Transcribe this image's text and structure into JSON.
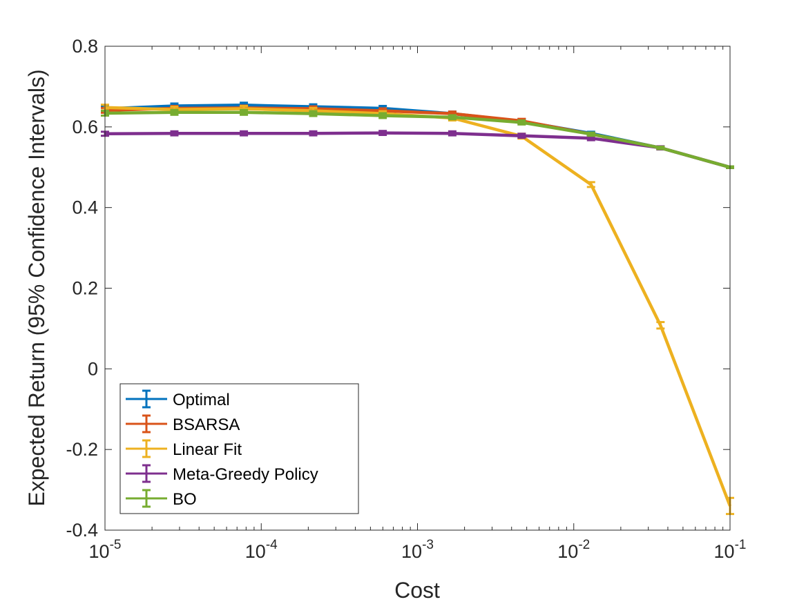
{
  "chart_data": {
    "type": "line",
    "title": "",
    "xlabel": "Cost",
    "ylabel": "Expected Return (95% Confidence Intervals)",
    "xscale": "log",
    "xlim": [
      1e-05,
      0.1
    ],
    "ylim": [
      -0.4,
      0.8
    ],
    "grid": false,
    "legend_position": "bottom-left",
    "x_ticks": [
      {
        "base": "10",
        "exp": "-5",
        "value": 1e-05
      },
      {
        "base": "10",
        "exp": "-4",
        "value": 0.0001
      },
      {
        "base": "10",
        "exp": "-3",
        "value": 0.001
      },
      {
        "base": "10",
        "exp": "-2",
        "value": 0.01
      },
      {
        "base": "10",
        "exp": "-1",
        "value": 0.1
      }
    ],
    "y_ticks": [
      {
        "label": "0.8",
        "value": 0.8
      },
      {
        "label": "0.6",
        "value": 0.6
      },
      {
        "label": "0.4",
        "value": 0.4
      },
      {
        "label": "0.2",
        "value": 0.2
      },
      {
        "label": "0",
        "value": 0
      },
      {
        "label": "-0.2",
        "value": -0.2
      },
      {
        "label": "-0.4",
        "value": -0.4
      }
    ],
    "x": [
      1e-05,
      2.78e-05,
      7.74e-05,
      0.000215,
      0.000599,
      0.00167,
      0.00464,
      0.0129,
      0.0359,
      0.1
    ],
    "series": [
      {
        "name": "Optimal",
        "color": "#0072BD",
        "values": [
          0.645,
          0.652,
          0.654,
          0.65,
          0.646,
          0.633,
          0.614,
          0.584,
          0.548,
          0.5
        ],
        "errors": [
          0.006,
          0.006,
          0.006,
          0.006,
          0.006,
          0.005,
          0.005,
          0.004,
          0.003,
          0.002
        ]
      },
      {
        "name": "BSARSA",
        "color": "#D95319",
        "values": [
          0.641,
          0.646,
          0.647,
          0.645,
          0.64,
          0.633,
          0.615,
          0.582,
          0.548,
          0.5
        ],
        "errors": [
          0.006,
          0.006,
          0.006,
          0.006,
          0.006,
          0.005,
          0.005,
          0.004,
          0.003,
          0.002
        ]
      },
      {
        "name": "Linear Fit",
        "color": "#EDB120",
        "values": [
          0.648,
          0.643,
          0.645,
          0.64,
          0.633,
          0.622,
          0.577,
          0.457,
          0.108,
          -0.34
        ],
        "errors": [
          0.007,
          0.007,
          0.007,
          0.007,
          0.006,
          0.006,
          0.006,
          0.006,
          0.008,
          0.02
        ]
      },
      {
        "name": "Meta-Greedy Policy",
        "color": "#7E2F8E",
        "values": [
          0.583,
          0.584,
          0.584,
          0.584,
          0.585,
          0.584,
          0.578,
          0.572,
          0.548,
          0.5
        ],
        "errors": [
          0.005,
          0.005,
          0.005,
          0.005,
          0.005,
          0.005,
          0.005,
          0.005,
          0.004,
          0.002
        ]
      },
      {
        "name": "BO",
        "color": "#77AC30",
        "values": [
          0.634,
          0.636,
          0.636,
          0.633,
          0.628,
          0.624,
          0.611,
          0.582,
          0.548,
          0.5
        ],
        "errors": [
          0.006,
          0.006,
          0.006,
          0.006,
          0.006,
          0.005,
          0.005,
          0.004,
          0.003,
          0.002
        ]
      }
    ]
  }
}
